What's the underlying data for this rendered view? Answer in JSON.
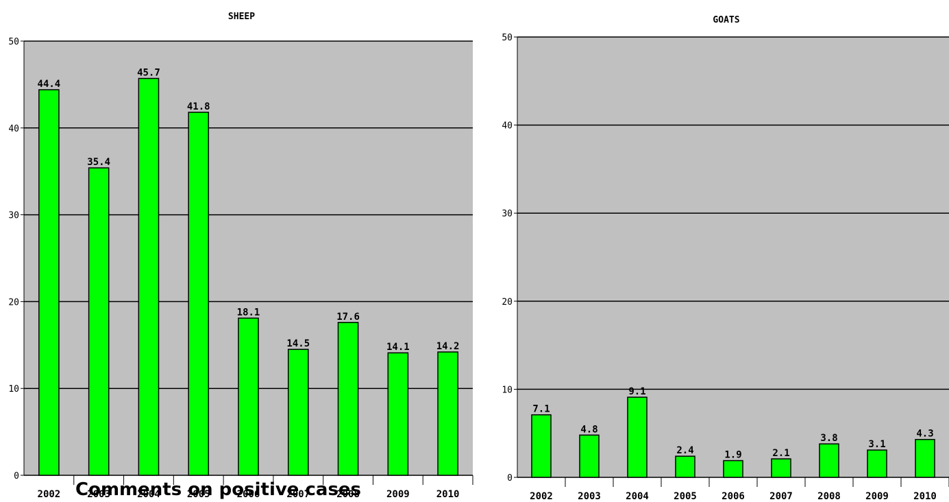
{
  "overlay": {
    "heading": "Comments on positive cases"
  },
  "colors": {
    "plot_bg": "#c0c0c0",
    "bar": "#00ff00",
    "grid": "#000000"
  },
  "chart_data": [
    {
      "type": "bar",
      "title": "SHEEP",
      "categories": [
        "2002",
        "2003",
        "2004",
        "2005",
        "2006",
        "2007",
        "2008",
        "2009",
        "2010"
      ],
      "values": [
        44.4,
        35.4,
        45.7,
        41.8,
        18.1,
        14.5,
        17.6,
        14.1,
        14.2
      ],
      "yticks": [
        "0",
        "10",
        "20",
        "30",
        "40",
        "50"
      ],
      "ylim": [
        0,
        50
      ],
      "grid": true
    },
    {
      "type": "bar",
      "title": "GOATS",
      "categories": [
        "2002",
        "2003",
        "2004",
        "2005",
        "2006",
        "2007",
        "2008",
        "2009",
        "2010"
      ],
      "values": [
        7.1,
        4.8,
        9.1,
        2.4,
        1.9,
        2.1,
        3.8,
        3.1,
        4.3
      ],
      "yticks": [
        "0",
        "10",
        "20",
        "30",
        "40",
        "50"
      ],
      "ylim": [
        0,
        50
      ],
      "grid": true
    }
  ]
}
